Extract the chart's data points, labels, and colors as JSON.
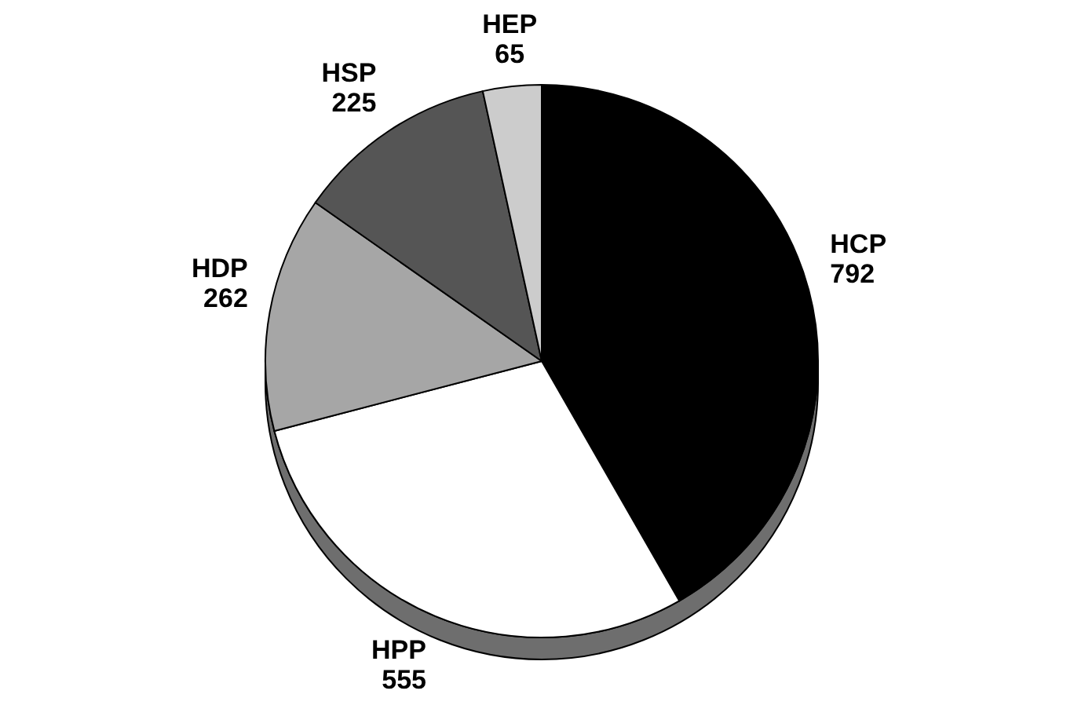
{
  "chart_data": {
    "type": "pie",
    "categories": [
      "HCP",
      "HPP",
      "HDP",
      "HSP",
      "HEP"
    ],
    "values": [
      792,
      555,
      262,
      225,
      65
    ],
    "colors": [
      "#000000",
      "#ffffff",
      "#a6a6a6",
      "#555555",
      "#cccccc"
    ],
    "data_labels": true
  }
}
